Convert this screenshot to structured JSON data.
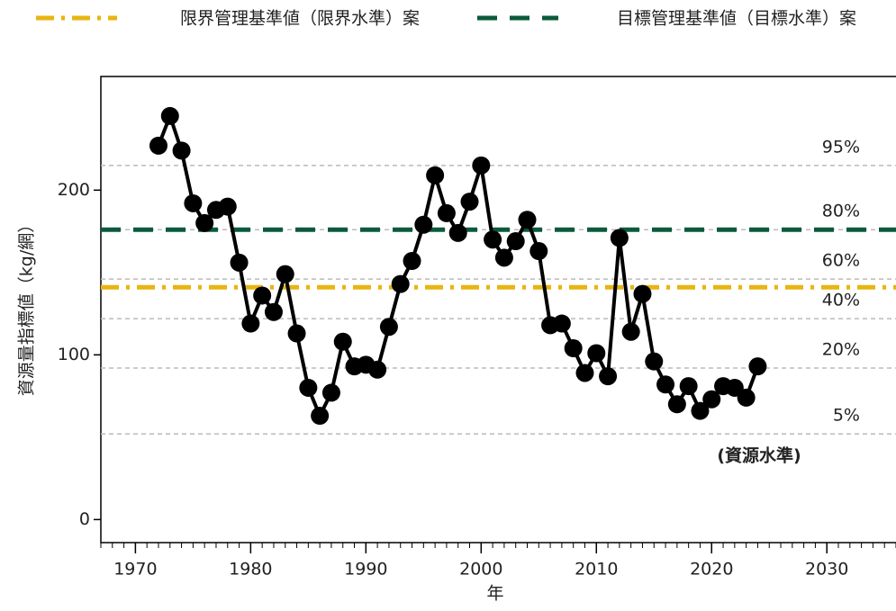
{
  "chart_data": {
    "type": "line",
    "x": [
      1972,
      1973,
      1974,
      1975,
      1976,
      1977,
      1978,
      1979,
      1980,
      1981,
      1982,
      1983,
      1984,
      1985,
      1986,
      1987,
      1988,
      1989,
      1990,
      1991,
      1992,
      1993,
      1994,
      1995,
      1996,
      1997,
      1998,
      1999,
      2000,
      2001,
      2002,
      2003,
      2004,
      2005,
      2006,
      2007,
      2008,
      2009,
      2010,
      2011,
      2012,
      2013,
      2014,
      2015,
      2016,
      2017,
      2018,
      2019,
      2020,
      2021,
      2022,
      2023,
      2024
    ],
    "values": [
      227,
      245,
      224,
      192,
      180,
      188,
      190,
      156,
      119,
      136,
      126,
      149,
      113,
      80,
      63,
      77,
      108,
      93,
      94,
      91,
      117,
      143,
      157,
      179,
      209,
      186,
      174,
      193,
      215,
      170,
      159,
      169,
      182,
      163,
      118,
      119,
      104,
      89,
      101,
      87,
      171,
      114,
      137,
      96,
      82,
      70,
      81,
      66,
      73,
      81,
      80,
      74,
      93
    ],
    "color": "#000000",
    "xlim": [
      1967,
      2036
    ],
    "xticks": [
      1970,
      1980,
      1990,
      2000,
      2010,
      2020,
      2030
    ],
    "ylim": [
      -14,
      269
    ],
    "yticks": [
      0,
      100,
      200
    ],
    "xlabel": "年",
    "ylabel": "資源量指標値（kg/網）",
    "reference_lines": [
      {
        "name": "限界管理基準値（限界水準）案",
        "value": 141,
        "color": "#e8b512",
        "style": "dashdot"
      },
      {
        "name": "目標管理基準値（目標水準）案",
        "value": 176,
        "color": "#0b5a3c",
        "style": "dashed"
      }
    ],
    "percentiles": [
      {
        "label": "95%",
        "value": 215
      },
      {
        "label": "80%",
        "value": 176
      },
      {
        "label": "60%",
        "value": 146
      },
      {
        "label": "40%",
        "value": 122
      },
      {
        "label": "20%",
        "value": 92
      },
      {
        "label": "5%",
        "value": 52
      }
    ],
    "annotation": "(資源水準)"
  }
}
